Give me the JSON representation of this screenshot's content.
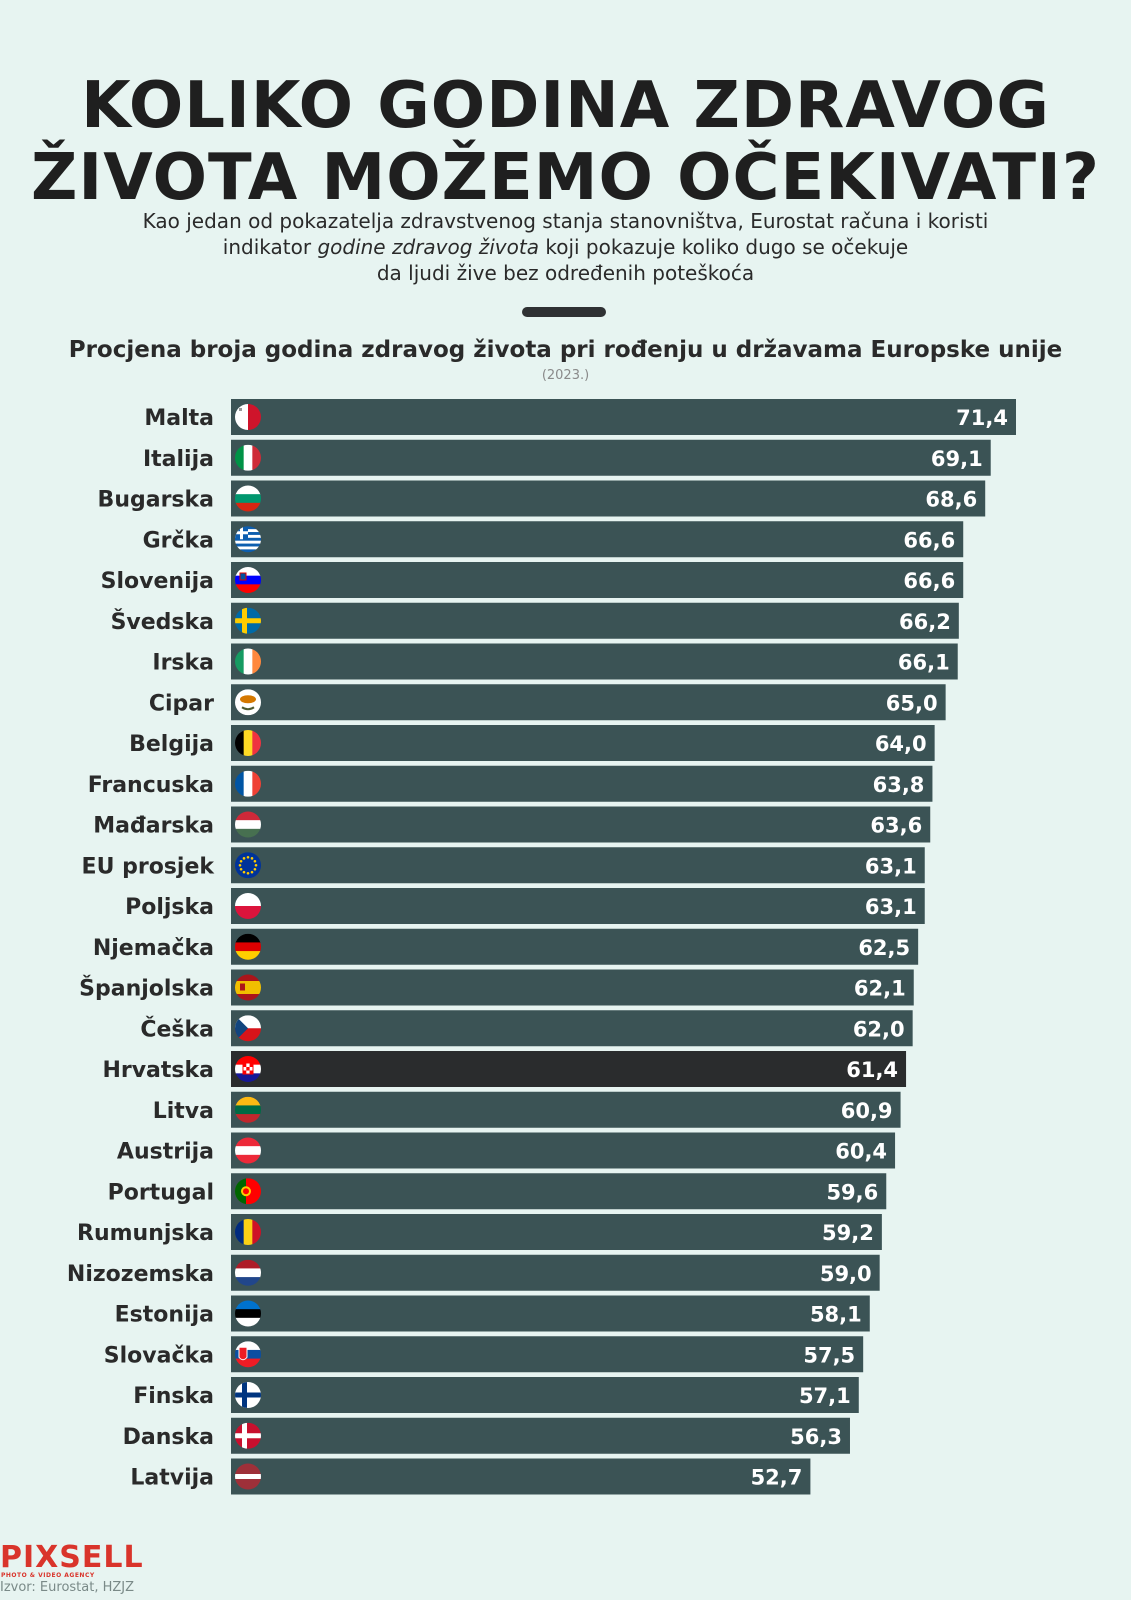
{
  "title": {
    "line1": "KOLIKO GODINA ZDRAVOG",
    "line2": "ŽIVOTA MOŽEMO OČEKIVATI?"
  },
  "subtitle": {
    "line1": "Kao jedan od pokazatelja zdravstvenog stanja stanovništva, Eurostat računa i koristi",
    "line2_pre": "indikator ",
    "line2_em": "godine zdravog života",
    "line2_post": " koji pokazuje koliko dugo se očekuje",
    "line3": "da ljudi žive bez određenih poteškoća"
  },
  "colors": {
    "background": "#e7f4f1",
    "bar": "#3b5355",
    "bar_highlight": "#2a2c2d",
    "bar_text": "#ffffff"
  },
  "chart_data": {
    "type": "bar",
    "orientation": "horizontal",
    "title": "Procjena broja godina zdravog života pri rođenju u državama Europske unije",
    "subtitle": "(2023.)",
    "xlabel": "",
    "ylabel": "",
    "xlim": [
      0,
      71.4
    ],
    "highlight": "Hrvatska",
    "categories": [
      "Malta",
      "Italija",
      "Bugarska",
      "Grčka",
      "Slovenija",
      "Švedska",
      "Irska",
      "Cipar",
      "Belgija",
      "Francuska",
      "Mađarska",
      "EU prosjek",
      "Poljska",
      "Njemačka",
      "Španjolska",
      "Češka",
      "Hrvatska",
      "Litva",
      "Austrija",
      "Portugal",
      "Rumunjska",
      "Nizozemska",
      "Estonija",
      "Slovačka",
      "Finska",
      "Danska",
      "Latvija"
    ],
    "values": [
      71.4,
      69.1,
      68.6,
      66.6,
      66.6,
      66.2,
      66.1,
      65.0,
      64.0,
      63.8,
      63.6,
      63.1,
      63.1,
      62.5,
      62.1,
      62.0,
      61.4,
      60.9,
      60.4,
      59.6,
      59.2,
      59.0,
      58.1,
      57.5,
      57.1,
      56.3,
      52.7
    ],
    "value_labels": [
      "71,4",
      "69,1",
      "68,6",
      "66,6",
      "66,6",
      "66,2",
      "66,1",
      "65,0",
      "64,0",
      "63,8",
      "63,6",
      "63,1",
      "63,1",
      "62,5",
      "62,1",
      "62,0",
      "61,4",
      "60,9",
      "60,4",
      "59,6",
      "59,2",
      "59,0",
      "58,1",
      "57,5",
      "57,1",
      "56,3",
      "52,7"
    ],
    "flag_icons": [
      "flag-malta-icon",
      "flag-italy-icon",
      "flag-bulgaria-icon",
      "flag-greece-icon",
      "flag-slovenia-icon",
      "flag-sweden-icon",
      "flag-ireland-icon",
      "flag-cyprus-icon",
      "flag-belgium-icon",
      "flag-france-icon",
      "flag-hungary-icon",
      "flag-eu-icon",
      "flag-poland-icon",
      "flag-germany-icon",
      "flag-spain-icon",
      "flag-czechia-icon",
      "flag-croatia-icon",
      "flag-lithuania-icon",
      "flag-austria-icon",
      "flag-portugal-icon",
      "flag-romania-icon",
      "flag-netherlands-icon",
      "flag-estonia-icon",
      "flag-slovakia-icon",
      "flag-finland-icon",
      "flag-denmark-icon",
      "flag-latvia-icon"
    ]
  },
  "footer": {
    "logo": "PIXSELL",
    "logo_sub": "PHOTO & VIDEO AGENCY",
    "source": "Izvor: Eurostat, HZJZ"
  }
}
